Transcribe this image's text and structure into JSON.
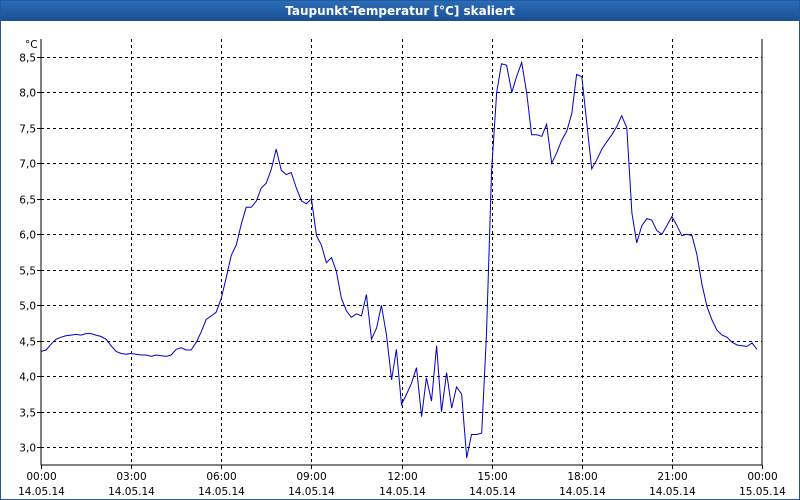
{
  "window": {
    "title": "Taupunkt-Temperatur [°C] skaliert"
  },
  "colors": {
    "titlebar": "#2a6cb7",
    "line": "#0000cc",
    "grid": "#000000",
    "background": "#ffffff"
  },
  "chart_data": {
    "type": "line",
    "title": "Taupunkt-Temperatur [°C] skaliert",
    "ylabel": "°C",
    "xlabel": "",
    "grid": true,
    "xlim": [
      0,
      24
    ],
    "ylim": [
      2.75,
      8.75
    ],
    "y_ticks": [
      {
        "value": 3.0,
        "label": "3,0"
      },
      {
        "value": 3.5,
        "label": "3,5"
      },
      {
        "value": 4.0,
        "label": "4,0"
      },
      {
        "value": 4.5,
        "label": "4,5"
      },
      {
        "value": 5.0,
        "label": "5,0"
      },
      {
        "value": 5.5,
        "label": "5,5"
      },
      {
        "value": 6.0,
        "label": "6,0"
      },
      {
        "value": 6.5,
        "label": "6,5"
      },
      {
        "value": 7.0,
        "label": "7,0"
      },
      {
        "value": 7.5,
        "label": "7,5"
      },
      {
        "value": 8.0,
        "label": "8,0"
      },
      {
        "value": 8.5,
        "label": "8,5"
      }
    ],
    "x_ticks": [
      {
        "value": 0,
        "time": "00:00",
        "date": "14.05.14"
      },
      {
        "value": 3,
        "time": "03:00",
        "date": "14.05.14"
      },
      {
        "value": 6,
        "time": "06:00",
        "date": "14.05.14"
      },
      {
        "value": 9,
        "time": "09:00",
        "date": "14.05.14"
      },
      {
        "value": 12,
        "time": "12:00",
        "date": "14.05.14"
      },
      {
        "value": 15,
        "time": "15:00",
        "date": "14.05.14"
      },
      {
        "value": 18,
        "time": "18:00",
        "date": "14.05.14"
      },
      {
        "value": 21,
        "time": "21:00",
        "date": "14.05.14"
      },
      {
        "value": 24,
        "time": "00:00",
        "date": "15.05.14"
      }
    ],
    "series": [
      {
        "x": [
          0,
          0.17,
          0.33,
          0.5,
          0.67,
          0.83,
          1.0,
          1.17,
          1.33,
          1.5,
          1.67,
          1.83,
          2.0,
          2.17,
          2.33,
          2.5,
          2.67,
          2.83,
          3.0,
          3.17,
          3.33,
          3.5,
          3.67,
          3.83,
          4.0,
          4.17,
          4.33,
          4.5,
          4.67,
          4.83,
          5.0,
          5.17,
          5.33,
          5.5,
          5.67,
          5.83,
          6.0,
          6.17,
          6.33,
          6.5,
          6.67,
          6.83,
          7.0,
          7.17,
          7.33,
          7.5,
          7.67,
          7.83,
          8.0,
          8.17,
          8.33,
          8.5,
          8.67,
          8.83,
          9.0,
          9.17,
          9.33,
          9.5,
          9.67,
          9.83,
          10.0,
          10.17,
          10.33,
          10.5,
          10.67,
          10.83,
          11.0,
          11.17,
          11.33,
          11.5,
          11.67,
          11.83,
          12.0,
          12.17,
          12.33,
          12.5,
          12.67,
          12.83,
          13.0,
          13.17,
          13.33,
          13.5,
          13.67,
          13.83,
          14.0,
          14.17,
          14.33,
          14.5,
          14.67,
          14.83,
          15.0,
          15.17,
          15.33,
          15.5,
          15.67,
          15.83,
          16.0,
          16.17,
          16.33,
          16.5,
          16.67,
          16.83,
          17.0,
          17.17,
          17.33,
          17.5,
          17.67,
          17.83,
          18.0,
          18.17,
          18.33,
          18.5,
          18.67,
          18.83,
          19.0,
          19.17,
          19.33,
          19.5,
          19.67,
          19.83,
          20.0,
          20.17,
          20.33,
          20.5,
          20.67,
          20.83,
          21.0,
          21.17,
          21.33,
          21.5,
          21.67,
          21.83,
          22.0,
          22.17,
          22.33,
          22.5,
          22.67,
          22.83,
          23.0,
          23.17,
          23.33,
          23.5,
          23.67,
          23.83
        ],
        "values": [
          4.35,
          4.37,
          4.45,
          4.52,
          4.55,
          4.57,
          4.58,
          4.59,
          4.58,
          4.6,
          4.6,
          4.58,
          4.56,
          4.52,
          4.43,
          4.35,
          4.32,
          4.31,
          4.32,
          4.31,
          4.3,
          4.3,
          4.28,
          4.3,
          4.29,
          4.28,
          4.3,
          4.38,
          4.4,
          4.37,
          4.37,
          4.48,
          4.62,
          4.8,
          4.85,
          4.9,
          5.1,
          5.4,
          5.7,
          5.85,
          6.15,
          6.38,
          6.38,
          6.47,
          6.65,
          6.72,
          6.92,
          7.2,
          6.9,
          6.84,
          6.87,
          6.65,
          6.47,
          6.43,
          6.5,
          5.98,
          5.85,
          5.6,
          5.67,
          5.48,
          5.1,
          4.92,
          4.83,
          4.88,
          4.85,
          5.15,
          4.52,
          4.68,
          5.0,
          4.58,
          3.95,
          4.38,
          3.6,
          3.75,
          3.9,
          4.12,
          3.43,
          3.98,
          3.65,
          4.43,
          3.5,
          4.05,
          3.55,
          3.85,
          3.75,
          2.85,
          3.18,
          3.18,
          3.2,
          4.6,
          6.9,
          8.0,
          8.4,
          8.38,
          8.0,
          8.22,
          8.42,
          7.98,
          7.4,
          7.4,
          7.38,
          7.55,
          7.0,
          7.15,
          7.32,
          7.45,
          7.7,
          8.25,
          8.22,
          7.55,
          6.92,
          7.05,
          7.2,
          7.3,
          7.4,
          7.52,
          7.67,
          7.5,
          6.3,
          5.88,
          6.12,
          6.22,
          6.2,
          6.05,
          6.0,
          6.12,
          6.25,
          6.12,
          5.98,
          6.0,
          5.98,
          5.72,
          5.3,
          4.98,
          4.8,
          4.65,
          4.58,
          4.55,
          4.48,
          4.44,
          4.43,
          4.42,
          4.47,
          4.38
        ]
      }
    ]
  }
}
